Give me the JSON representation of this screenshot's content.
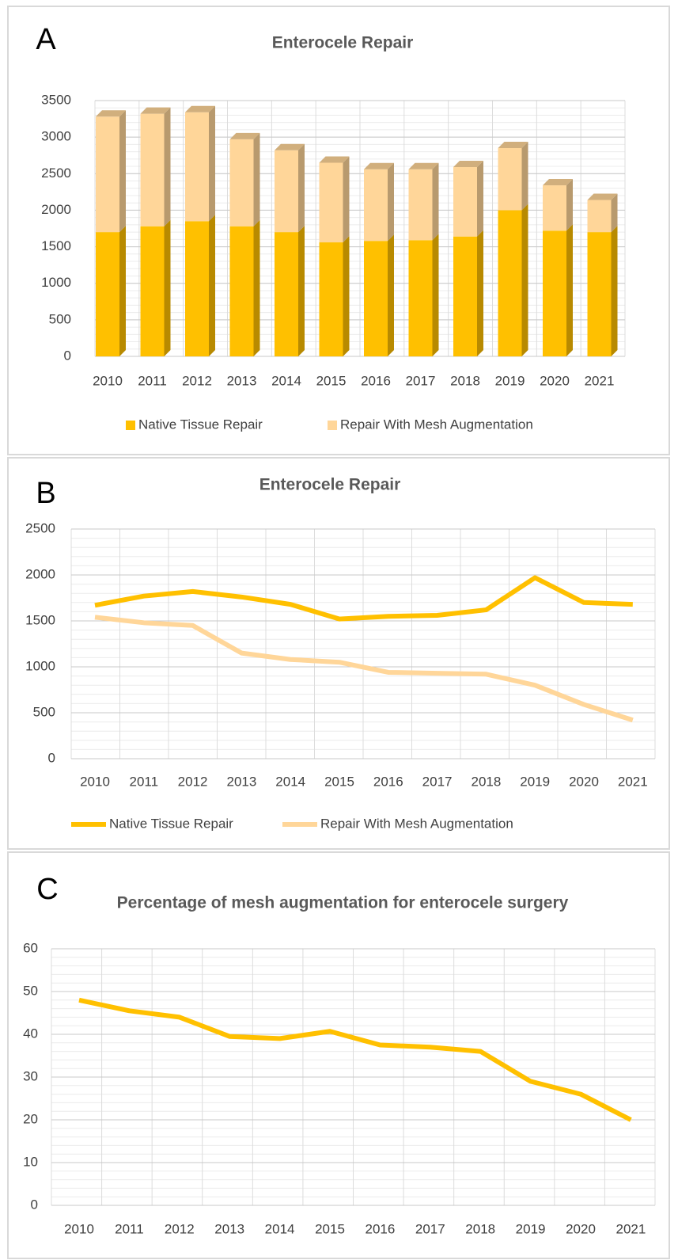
{
  "chart_data": [
    {
      "type": "bar",
      "stacked": true,
      "panel_label": "A",
      "title": "Enterocele Repair",
      "categories": [
        "2010",
        "2011",
        "2012",
        "2013",
        "2014",
        "2015",
        "2016",
        "2017",
        "2018",
        "2019",
        "2020",
        "2021"
      ],
      "series": [
        {
          "name": "Native Tissue Repair",
          "color": "#FFC000",
          "values": [
            1700,
            1780,
            1850,
            1780,
            1700,
            1560,
            1580,
            1590,
            1640,
            2000,
            1720,
            1700
          ]
        },
        {
          "name": "Repair With Mesh Augmentation",
          "color": "#FFD699",
          "values": [
            1580,
            1540,
            1490,
            1190,
            1120,
            1090,
            980,
            970,
            950,
            850,
            620,
            440
          ]
        }
      ],
      "ylim": [
        0,
        3500
      ],
      "yticks": [
        0,
        500,
        1000,
        1500,
        2000,
        2500,
        3000,
        3500
      ],
      "grid": true,
      "legend": "bottom"
    },
    {
      "type": "line",
      "panel_label": "B",
      "title": "Enterocele Repair",
      "categories": [
        "2010",
        "2011",
        "2012",
        "2013",
        "2014",
        "2015",
        "2016",
        "2017",
        "2018",
        "2019",
        "2020",
        "2021"
      ],
      "series": [
        {
          "name": "Native Tissue Repair",
          "color": "#FFC000",
          "values": [
            1670,
            1770,
            1820,
            1760,
            1680,
            1520,
            1550,
            1560,
            1620,
            1970,
            1700,
            1680
          ]
        },
        {
          "name": "Repair With Mesh Augmentation",
          "color": "#FFD699",
          "values": [
            1540,
            1480,
            1450,
            1150,
            1080,
            1050,
            940,
            930,
            920,
            800,
            590,
            420
          ]
        }
      ],
      "ylim": [
        0,
        2500
      ],
      "yticks": [
        0,
        500,
        1000,
        1500,
        2000,
        2500
      ],
      "grid": true,
      "legend": "bottom"
    },
    {
      "type": "line",
      "panel_label": "C",
      "title": "Percentage of mesh augmentation for enterocele surgery",
      "categories": [
        "2010",
        "2011",
        "2012",
        "2013",
        "2014",
        "2015",
        "2016",
        "2017",
        "2018",
        "2019",
        "2020",
        "2021"
      ],
      "series": [
        {
          "color": "#FFC000",
          "values": [
            48,
            45.5,
            44,
            39.5,
            39,
            40.7,
            37.5,
            37,
            36,
            29,
            26,
            20
          ]
        }
      ],
      "ylim": [
        0,
        60
      ],
      "yticks": [
        0,
        10,
        20,
        30,
        40,
        50,
        60
      ],
      "grid": true
    }
  ]
}
